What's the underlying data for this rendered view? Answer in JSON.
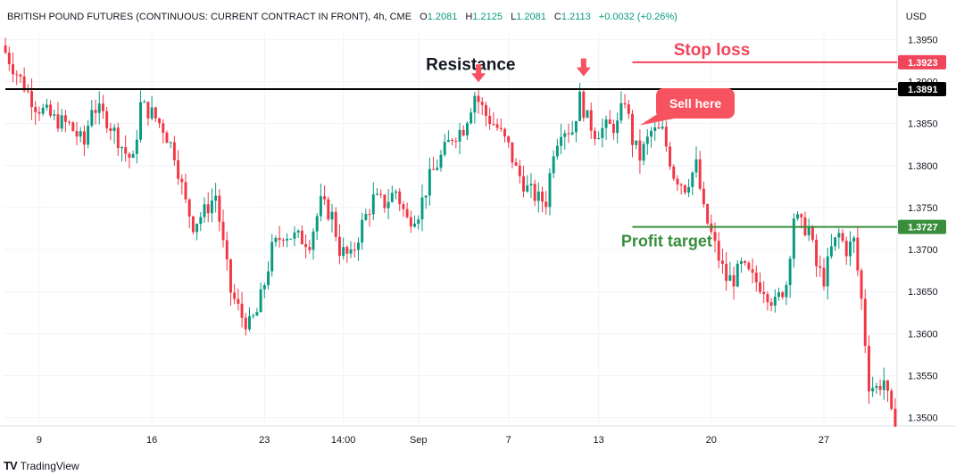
{
  "header": {
    "symbol": "BRITISH POUND FUTURES (CONTINUOUS: CURRENT CONTRACT IN FRONT), 4h, CME",
    "open_label": "O",
    "open": "1.2081",
    "high_label": "H",
    "high": "1.2125",
    "low_label": "L",
    "low": "1.2081",
    "close_label": "C",
    "close": "1.2113",
    "change": "+0.0032 (+0.26%)"
  },
  "currency": "USD",
  "branding": {
    "logo": "TV",
    "name": "TradingView"
  },
  "colors": {
    "up": "#089981",
    "down": "#f23645",
    "resistance": "#000000",
    "stop_loss": "#f0455a",
    "profit_target": "#388e3c",
    "arrow": "#f7525f"
  },
  "chart_data": {
    "type": "candlestick",
    "ylim": [
      1.349,
      1.396
    ],
    "y_ticks": [
      "1.3950",
      "1.3900",
      "1.3850",
      "1.3800",
      "1.3750",
      "1.3700",
      "1.3650",
      "1.3600",
      "1.3550",
      "1.3500"
    ],
    "x_ticks": [
      {
        "label": "9",
        "bar": 9
      },
      {
        "label": "16",
        "bar": 39
      },
      {
        "label": "23",
        "bar": 69
      },
      {
        "label": "14:00",
        "bar": 90
      },
      {
        "label": "Sep",
        "bar": 110
      },
      {
        "label": "7",
        "bar": 134
      },
      {
        "label": "13",
        "bar": 158
      },
      {
        "label": "20",
        "bar": 188
      },
      {
        "label": "27",
        "bar": 218
      }
    ],
    "lines": [
      {
        "name": "resistance",
        "price": 1.3891,
        "label": "1.3891",
        "bar_start": 0
      },
      {
        "name": "stop-loss",
        "price": 1.3923,
        "label": "1.3923",
        "bar_start": 167
      },
      {
        "name": "profit-target",
        "price": 1.3727,
        "label": "1.3727",
        "bar_start": 167
      }
    ],
    "annotations": {
      "resistance": "Resistance",
      "stop_loss": "Stop loss",
      "profit_target": "Profit target",
      "sell_here": "Sell here"
    },
    "arrows": [
      {
        "bar": 126,
        "price": 1.3895
      },
      {
        "bar": 154,
        "price": 1.3902
      }
    ],
    "sell_bar": 168,
    "sell_price": 1.3848,
    "waypoints": [
      [
        0,
        1.3943
      ],
      [
        3,
        1.3918
      ],
      [
        6,
        1.3895
      ],
      [
        9,
        1.3872
      ],
      [
        14,
        1.3855
      ],
      [
        18,
        1.3848
      ],
      [
        22,
        1.3825
      ],
      [
        24,
        1.3872
      ],
      [
        28,
        1.3855
      ],
      [
        30,
        1.384
      ],
      [
        33,
        1.3815
      ],
      [
        35,
        1.3805
      ],
      [
        37,
        1.3872
      ],
      [
        40,
        1.3862
      ],
      [
        43,
        1.3845
      ],
      [
        46,
        1.3815
      ],
      [
        49,
        1.3755
      ],
      [
        51,
        1.373
      ],
      [
        54,
        1.3745
      ],
      [
        57,
        1.3765
      ],
      [
        59,
        1.3705
      ],
      [
        61,
        1.365
      ],
      [
        64,
        1.362
      ],
      [
        66,
        1.361
      ],
      [
        68,
        1.3625
      ],
      [
        70,
        1.366
      ],
      [
        72,
        1.37
      ],
      [
        75,
        1.372
      ],
      [
        78,
        1.3715
      ],
      [
        82,
        1.371
      ],
      [
        85,
        1.3755
      ],
      [
        88,
        1.374
      ],
      [
        90,
        1.37
      ],
      [
        93,
        1.369
      ],
      [
        96,
        1.373
      ],
      [
        99,
        1.376
      ],
      [
        102,
        1.3755
      ],
      [
        105,
        1.377
      ],
      [
        108,
        1.3735
      ],
      [
        111,
        1.3745
      ],
      [
        114,
        1.3785
      ],
      [
        117,
        1.381
      ],
      [
        120,
        1.3835
      ],
      [
        123,
        1.3845
      ],
      [
        126,
        1.3885
      ],
      [
        129,
        1.386
      ],
      [
        132,
        1.3845
      ],
      [
        135,
        1.3822
      ],
      [
        137,
        1.3795
      ],
      [
        140,
        1.3772
      ],
      [
        143,
        1.376
      ],
      [
        145,
        1.3758
      ],
      [
        147,
        1.382
      ],
      [
        149,
        1.3845
      ],
      [
        152,
        1.3842
      ],
      [
        154,
        1.388
      ],
      [
        156,
        1.3855
      ],
      [
        158,
        1.384
      ],
      [
        161,
        1.3845
      ],
      [
        164,
        1.3848
      ],
      [
        166,
        1.388
      ],
      [
        168,
        1.383
      ],
      [
        170,
        1.381
      ],
      [
        173,
        1.384
      ],
      [
        176,
        1.384
      ],
      [
        179,
        1.379
      ],
      [
        182,
        1.3775
      ],
      [
        185,
        1.38
      ],
      [
        187,
        1.3745
      ],
      [
        189,
        1.3718
      ],
      [
        191,
        1.369
      ],
      [
        193,
        1.3665
      ],
      [
        195,
        1.3665
      ],
      [
        197,
        1.368
      ],
      [
        200,
        1.3665
      ],
      [
        203,
        1.3655
      ],
      [
        206,
        1.3635
      ],
      [
        209,
        1.366
      ],
      [
        211,
        1.374
      ],
      [
        213,
        1.3728
      ],
      [
        215,
        1.3725
      ],
      [
        217,
        1.368
      ],
      [
        219,
        1.3665
      ],
      [
        221,
        1.37
      ],
      [
        223,
        1.3718
      ],
      [
        225,
        1.37
      ],
      [
        227,
        1.371
      ],
      [
        229,
        1.364
      ],
      [
        231,
        1.354
      ],
      [
        233,
        1.3535
      ],
      [
        235,
        1.3545
      ],
      [
        237,
        1.35
      ]
    ]
  }
}
